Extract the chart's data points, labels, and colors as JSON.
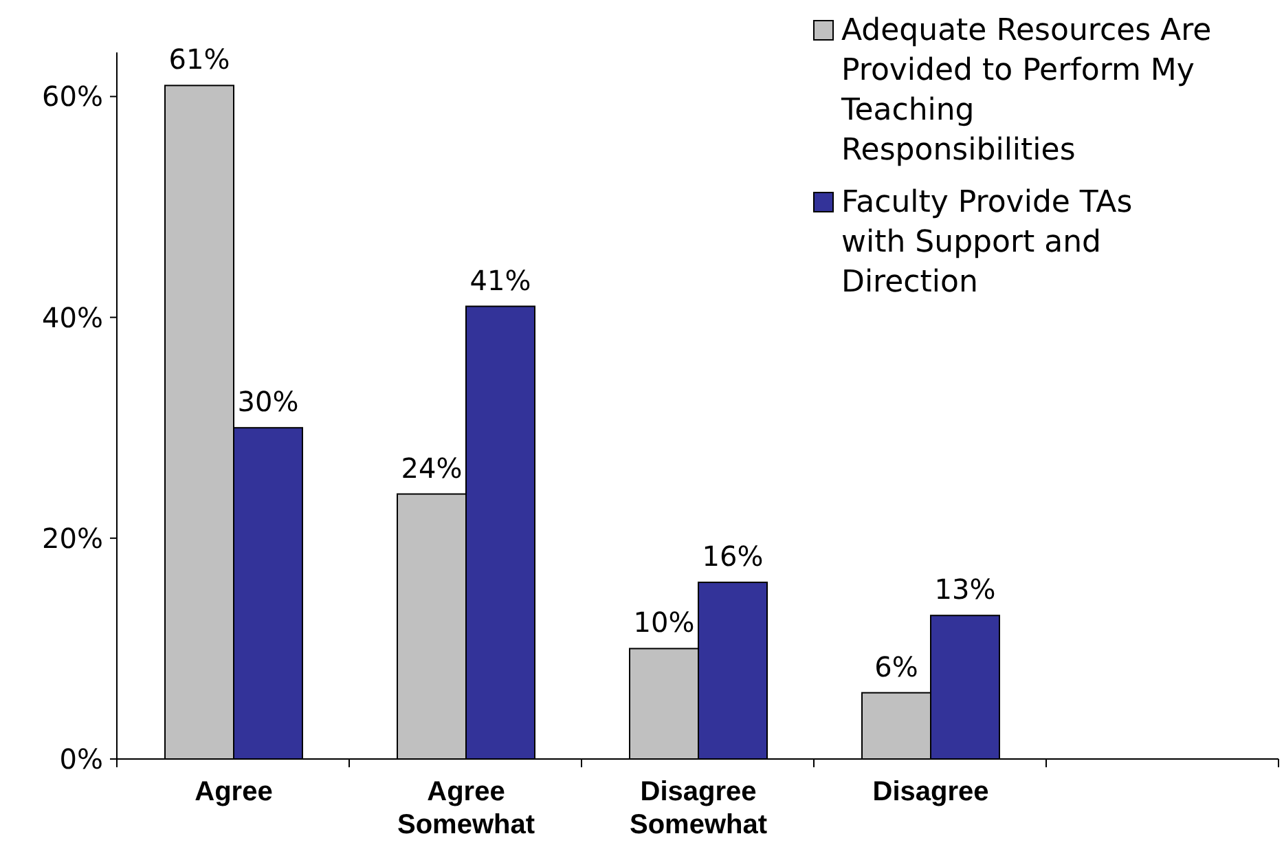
{
  "chart_data": {
    "type": "bar",
    "categories": [
      "Agree",
      "Agree Somewhat",
      "Disagree Somewhat",
      "Disagree",
      null
    ],
    "series": [
      {
        "name": "Adequate Resources Are Provided to Perform My Teaching Responsibilities",
        "color": "#c0c0c0",
        "values": [
          61,
          24,
          10,
          6,
          null
        ],
        "value_labels": [
          "61%",
          "24%",
          "10%",
          "6%",
          null
        ]
      },
      {
        "name": "Faculty Provide TAs with Support and Direction",
        "color": "#333399",
        "values": [
          30,
          41,
          16,
          13,
          null
        ],
        "value_labels": [
          "30%",
          "41%",
          "16%",
          "13%",
          null
        ]
      }
    ],
    "ylim": [
      0,
      64
    ],
    "yticks": [
      {
        "value": 0,
        "label": "0%"
      },
      {
        "value": 20,
        "label": "20%"
      },
      {
        "value": 40,
        "label": "40%"
      },
      {
        "value": 60,
        "label": "60%"
      }
    ],
    "grid": false,
    "legend": "top right"
  }
}
